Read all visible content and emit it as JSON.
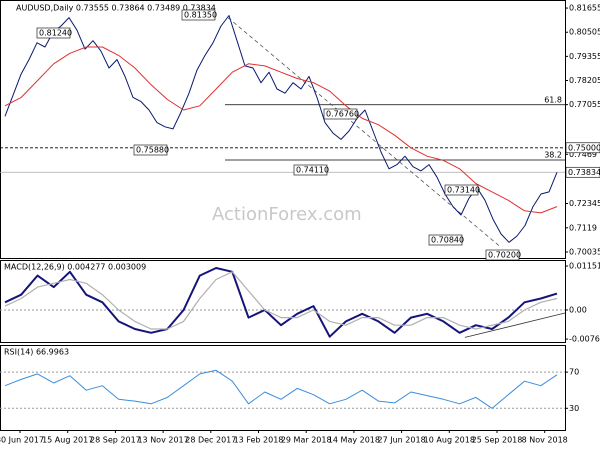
{
  "chart_data": [
    {
      "type": "line",
      "title": "AUDUSD,Daily  0.73555 0.73864 0.73489 0.73834",
      "watermark": "ActionForex.com",
      "ylim": [
        0.6975,
        0.8204
      ],
      "yticks": [
        0.81655,
        0.80505,
        0.79355,
        0.78205,
        0.77055,
        0.7469,
        0.72345,
        0.7119,
        0.70035
      ],
      "series": [
        {
          "name": "AUDUSD",
          "color": "#0a1a6e",
          "values": [
            0.765,
            0.775,
            0.785,
            0.792,
            0.8,
            0.798,
            0.805,
            0.808,
            0.812,
            0.806,
            0.797,
            0.801,
            0.796,
            0.788,
            0.792,
            0.784,
            0.774,
            0.772,
            0.768,
            0.762,
            0.76,
            0.759,
            0.767,
            0.776,
            0.787,
            0.794,
            0.8,
            0.808,
            0.813,
            0.801,
            0.789,
            0.788,
            0.781,
            0.786,
            0.778,
            0.776,
            0.781,
            0.778,
            0.784,
            0.774,
            0.762,
            0.757,
            0.754,
            0.758,
            0.764,
            0.768,
            0.758,
            0.748,
            0.74,
            0.742,
            0.746,
            0.741,
            0.739,
            0.742,
            0.736,
            0.728,
            0.722,
            0.718,
            0.726,
            0.731,
            0.725,
            0.716,
            0.709,
            0.705,
            0.708,
            0.713,
            0.722,
            0.728,
            0.729,
            0.7383
          ]
        },
        {
          "name": "MA",
          "color": "#e0312e",
          "values": [
            0.77,
            0.774,
            0.782,
            0.79,
            0.795,
            0.798,
            0.798,
            0.794,
            0.788,
            0.78,
            0.773,
            0.768,
            0.77,
            0.778,
            0.786,
            0.79,
            0.789,
            0.786,
            0.783,
            0.781,
            0.777,
            0.77,
            0.764,
            0.761,
            0.756,
            0.75,
            0.746,
            0.744,
            0.74,
            0.733,
            0.729,
            0.725,
            0.72,
            0.719,
            0.722
          ]
        }
      ],
      "levels": [
        {
          "value": 0.75,
          "label": "0.75000"
        },
        {
          "value": 0.73834,
          "label": "0.73834"
        },
        {
          "value": 0.7705,
          "label": "61.8"
        },
        {
          "value": 0.7442,
          "label": "38.2"
        }
      ],
      "trendline": [
        0.812,
        0.703
      ],
      "annotations": [
        "0.81240",
        "0.81350",
        "0.75880",
        "0.76760",
        "0.74110",
        "0.73140",
        "0.70840",
        "0.70200"
      ],
      "xticks": [
        "30 Jun 2017",
        "15 Aug 2017",
        "28 Sep 2017",
        "13 Nov 2017",
        "28 Dec 2017",
        "13 Feb 2018",
        "29 Mar 2018",
        "14 May 2018",
        "27 Jun 2018",
        "10 Aug 2018",
        "25 Sep 2018",
        "8 Nov 2018"
      ]
    },
    {
      "type": "line",
      "title": "MACD(12,26,9) 0.004277 0.003009",
      "ylim": [
        -0.0084,
        0.0131
      ],
      "yticks": [
        0.011519,
        {
          "value": 0,
          "label": "0.00"
        },
        -0.007634
      ],
      "series": [
        {
          "name": "MACD",
          "color": "#14147a",
          "values": [
            0.002,
            0.004,
            0.009,
            0.006,
            0.01,
            0.004,
            0.002,
            -0.003,
            -0.005,
            -0.006,
            -0.005,
            0,
            0.009,
            0.011,
            0.01,
            -0.002,
            0,
            -0.004,
            -0.001,
            0.001,
            -0.007,
            -0.003,
            -0.001,
            -0.003,
            -0.006,
            -0.002,
            -0.001,
            -0.003,
            -0.006,
            -0.004,
            -0.005,
            -0.002,
            0.002,
            0.003,
            0.0043
          ]
        },
        {
          "name": "Signal",
          "color": "#b0b0b0",
          "values": [
            0.001,
            0.003,
            0.006,
            0.007,
            0.008,
            0.007,
            0.004,
            0,
            -0.003,
            -0.005,
            -0.005,
            -0.003,
            0.003,
            0.008,
            0.01,
            0.005,
            0,
            -0.002,
            -0.002,
            0,
            -0.003,
            -0.004,
            -0.002,
            -0.002,
            -0.004,
            -0.004,
            -0.002,
            -0.002,
            -0.004,
            -0.005,
            -0.004,
            -0.003,
            0,
            0.002,
            0.003
          ]
        }
      ],
      "trendline": [
        -0.0072,
        -0.0008
      ]
    },
    {
      "type": "line",
      "title": "RSI(14) 66.9963",
      "ylim": [
        6,
        100
      ],
      "yticks": [
        70,
        30
      ],
      "series": [
        {
          "name": "RSI",
          "color": "#3b8ede",
          "values": [
            55,
            62,
            68,
            58,
            66,
            50,
            55,
            40,
            38,
            35,
            42,
            55,
            68,
            72,
            60,
            35,
            48,
            40,
            52,
            45,
            35,
            40,
            50,
            38,
            36,
            48,
            44,
            40,
            35,
            42,
            30,
            45,
            60,
            55,
            67
          ]
        }
      ]
    }
  ]
}
